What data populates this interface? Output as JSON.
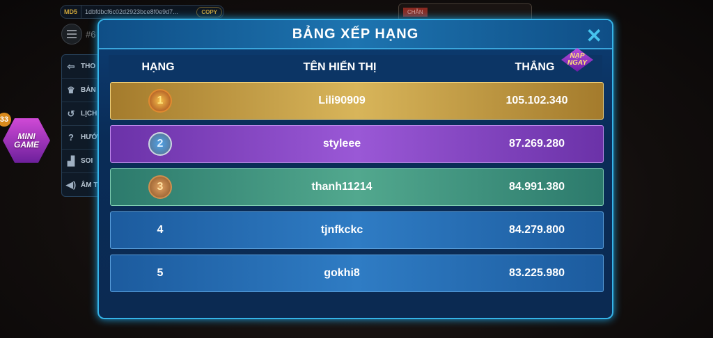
{
  "background": {
    "md5_label": "MD5",
    "md5_hash": "1dbfdbcf6c02d2923bce8f0e9d7...",
    "copy_label": "COPY",
    "session_id": "#6",
    "chan_label": "CHẴN",
    "menu": [
      {
        "icon": "logout-icon",
        "label": "THO"
      },
      {
        "icon": "trophy-icon",
        "label": "BẢN"
      },
      {
        "icon": "history-icon",
        "label": "LỊCH"
      },
      {
        "icon": "help-icon",
        "label": "HƯỚ"
      },
      {
        "icon": "chart-icon",
        "label": "SOI"
      },
      {
        "icon": "sound-icon",
        "label": "ÂM T"
      }
    ],
    "mini_game": {
      "line1": "MINI",
      "line2": "GAME",
      "badge": "33"
    }
  },
  "modal": {
    "title": "BẢNG XẾP HẠNG",
    "close": "✕",
    "columns": [
      "HẠNG",
      "TÊN HIỂN THỊ",
      "THẮNG"
    ],
    "promo": {
      "line1": "NẠP",
      "line2": "NGAY"
    },
    "rows": [
      {
        "rank": "1",
        "name": "Lili90909",
        "wins": "105.102.340"
      },
      {
        "rank": "2",
        "name": "styleee",
        "wins": "87.269.280"
      },
      {
        "rank": "3",
        "name": "thanh11214",
        "wins": "84.991.380"
      },
      {
        "rank": "4",
        "name": "tjnfkckc",
        "wins": "84.279.800"
      },
      {
        "rank": "5",
        "name": "gokhi8",
        "wins": "83.225.980"
      }
    ]
  }
}
